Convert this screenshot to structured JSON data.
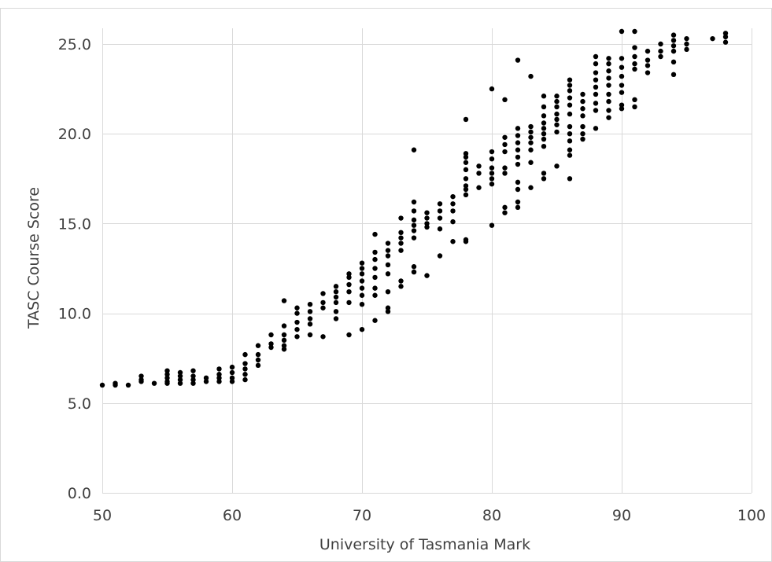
{
  "chart_data": {
    "type": "scatter",
    "title": "",
    "xlabel": "University of Tasmania Mark",
    "ylabel": "TASC Course Score",
    "xlim": [
      50,
      100
    ],
    "ylim": [
      0,
      25
    ],
    "x_ticks": [
      50,
      60,
      70,
      80,
      90,
      100
    ],
    "x_tick_labels": [
      "50",
      "60",
      "70",
      "80",
      "90",
      "100"
    ],
    "y_ticks": [
      0,
      5,
      10,
      15,
      20,
      25
    ],
    "y_tick_labels": [
      "0.0",
      "5.0",
      "10.0",
      "15.0",
      "20.0",
      "25.0"
    ],
    "grid": true,
    "legend": "none",
    "marker_color": "#000000",
    "series": [
      {
        "points": [
          [
            50,
            6.0
          ],
          [
            51,
            6.0
          ],
          [
            51,
            6.1
          ],
          [
            52,
            6.0
          ],
          [
            53,
            6.2
          ],
          [
            53,
            6.3
          ],
          [
            53,
            6.5
          ],
          [
            54,
            6.1
          ],
          [
            55,
            6.1
          ],
          [
            55,
            6.2
          ],
          [
            55,
            6.4
          ],
          [
            55,
            6.6
          ],
          [
            55,
            6.8
          ],
          [
            56,
            6.1
          ],
          [
            56,
            6.3
          ],
          [
            56,
            6.5
          ],
          [
            56,
            6.7
          ],
          [
            57,
            6.1
          ],
          [
            57,
            6.3
          ],
          [
            57,
            6.5
          ],
          [
            57,
            6.8
          ],
          [
            58,
            6.2
          ],
          [
            58,
            6.4
          ],
          [
            59,
            6.2
          ],
          [
            59,
            6.4
          ],
          [
            59,
            6.6
          ],
          [
            59,
            6.9
          ],
          [
            60,
            6.2
          ],
          [
            60,
            6.4
          ],
          [
            60,
            6.7
          ],
          [
            60,
            7.0
          ],
          [
            61,
            6.3
          ],
          [
            61,
            6.6
          ],
          [
            61,
            6.9
          ],
          [
            61,
            7.2
          ],
          [
            61,
            7.7
          ],
          [
            62,
            7.1
          ],
          [
            62,
            7.4
          ],
          [
            62,
            7.7
          ],
          [
            62,
            8.2
          ],
          [
            63,
            8.1
          ],
          [
            63,
            8.3
          ],
          [
            63,
            8.8
          ],
          [
            64,
            8.0
          ],
          [
            64,
            8.2
          ],
          [
            64,
            8.5
          ],
          [
            64,
            8.8
          ],
          [
            64,
            9.3
          ],
          [
            64,
            10.7
          ],
          [
            65,
            8.7
          ],
          [
            65,
            9.1
          ],
          [
            65,
            9.5
          ],
          [
            65,
            10.0
          ],
          [
            65,
            10.3
          ],
          [
            66,
            8.8
          ],
          [
            66,
            9.4
          ],
          [
            66,
            9.7
          ],
          [
            66,
            10.1
          ],
          [
            66,
            10.5
          ],
          [
            67,
            8.7
          ],
          [
            67,
            10.3
          ],
          [
            67,
            10.6
          ],
          [
            67,
            11.1
          ],
          [
            68,
            9.7
          ],
          [
            68,
            10.1
          ],
          [
            68,
            10.6
          ],
          [
            68,
            10.9
          ],
          [
            68,
            11.2
          ],
          [
            68,
            11.5
          ],
          [
            69,
            8.8
          ],
          [
            69,
            10.6
          ],
          [
            69,
            11.2
          ],
          [
            69,
            11.6
          ],
          [
            69,
            12.0
          ],
          [
            69,
            12.2
          ],
          [
            70,
            9.1
          ],
          [
            70,
            10.5
          ],
          [
            70,
            11.0
          ],
          [
            70,
            11.4
          ],
          [
            70,
            11.8
          ],
          [
            70,
            12.2
          ],
          [
            70,
            12.5
          ],
          [
            70,
            12.8
          ],
          [
            71,
            9.6
          ],
          [
            71,
            11.0
          ],
          [
            71,
            11.4
          ],
          [
            71,
            12.0
          ],
          [
            71,
            12.5
          ],
          [
            71,
            13.0
          ],
          [
            71,
            13.4
          ],
          [
            71,
            14.4
          ],
          [
            72,
            10.1
          ],
          [
            72,
            10.3
          ],
          [
            72,
            11.2
          ],
          [
            72,
            12.2
          ],
          [
            72,
            12.7
          ],
          [
            72,
            13.2
          ],
          [
            72,
            13.5
          ],
          [
            72,
            13.9
          ],
          [
            73,
            11.5
          ],
          [
            73,
            11.8
          ],
          [
            73,
            13.5
          ],
          [
            73,
            13.9
          ],
          [
            73,
            14.2
          ],
          [
            73,
            14.5
          ],
          [
            73,
            15.3
          ],
          [
            74,
            12.3
          ],
          [
            74,
            12.6
          ],
          [
            74,
            14.2
          ],
          [
            74,
            14.6
          ],
          [
            74,
            14.9
          ],
          [
            74,
            15.2
          ],
          [
            74,
            15.7
          ],
          [
            74,
            16.2
          ],
          [
            74,
            19.1
          ],
          [
            75,
            12.1
          ],
          [
            75,
            14.8
          ],
          [
            75,
            15.0
          ],
          [
            75,
            15.3
          ],
          [
            75,
            15.6
          ],
          [
            76,
            13.2
          ],
          [
            76,
            14.7
          ],
          [
            76,
            15.3
          ],
          [
            76,
            15.7
          ],
          [
            76,
            16.1
          ],
          [
            77,
            14.0
          ],
          [
            77,
            15.1
          ],
          [
            77,
            15.7
          ],
          [
            77,
            16.1
          ],
          [
            77,
            16.5
          ],
          [
            78,
            14.0
          ],
          [
            78,
            14.1
          ],
          [
            78,
            16.6
          ],
          [
            78,
            16.9
          ],
          [
            78,
            17.1
          ],
          [
            78,
            17.5
          ],
          [
            78,
            18.0
          ],
          [
            78,
            18.4
          ],
          [
            78,
            18.7
          ],
          [
            78,
            18.9
          ],
          [
            78,
            20.8
          ],
          [
            79,
            17.0
          ],
          [
            79,
            17.8
          ],
          [
            79,
            18.2
          ],
          [
            80,
            14.9
          ],
          [
            80,
            17.2
          ],
          [
            80,
            17.5
          ],
          [
            80,
            17.8
          ],
          [
            80,
            18.1
          ],
          [
            80,
            18.6
          ],
          [
            80,
            19.0
          ],
          [
            80,
            22.5
          ],
          [
            81,
            15.6
          ],
          [
            81,
            15.9
          ],
          [
            81,
            17.8
          ],
          [
            81,
            18.1
          ],
          [
            81,
            19.0
          ],
          [
            81,
            19.4
          ],
          [
            81,
            19.8
          ],
          [
            81,
            21.9
          ],
          [
            82,
            15.9
          ],
          [
            82,
            16.2
          ],
          [
            82,
            16.9
          ],
          [
            82,
            17.3
          ],
          [
            82,
            18.3
          ],
          [
            82,
            18.7
          ],
          [
            82,
            19.1
          ],
          [
            82,
            19.5
          ],
          [
            82,
            19.9
          ],
          [
            82,
            20.3
          ],
          [
            82,
            24.1
          ],
          [
            83,
            17.0
          ],
          [
            83,
            18.4
          ],
          [
            83,
            19.1
          ],
          [
            83,
            19.5
          ],
          [
            83,
            19.8
          ],
          [
            83,
            20.1
          ],
          [
            83,
            20.4
          ],
          [
            83,
            23.2
          ],
          [
            84,
            17.5
          ],
          [
            84,
            17.8
          ],
          [
            84,
            19.3
          ],
          [
            84,
            19.7
          ],
          [
            84,
            20.0
          ],
          [
            84,
            20.3
          ],
          [
            84,
            20.6
          ],
          [
            84,
            21.0
          ],
          [
            84,
            21.5
          ],
          [
            84,
            22.1
          ],
          [
            85,
            18.2
          ],
          [
            85,
            20.1
          ],
          [
            85,
            20.5
          ],
          [
            85,
            20.8
          ],
          [
            85,
            21.1
          ],
          [
            85,
            21.5
          ],
          [
            85,
            21.8
          ],
          [
            85,
            22.1
          ],
          [
            86,
            17.5
          ],
          [
            86,
            18.8
          ],
          [
            86,
            19.1
          ],
          [
            86,
            19.6
          ],
          [
            86,
            20.0
          ],
          [
            86,
            20.4
          ],
          [
            86,
            21.1
          ],
          [
            86,
            21.6
          ],
          [
            86,
            22.0
          ],
          [
            86,
            22.4
          ],
          [
            86,
            22.7
          ],
          [
            86,
            23.0
          ],
          [
            87,
            19.7
          ],
          [
            87,
            20.0
          ],
          [
            87,
            20.4
          ],
          [
            87,
            21.0
          ],
          [
            87,
            21.4
          ],
          [
            87,
            21.8
          ],
          [
            87,
            22.2
          ],
          [
            88,
            20.3
          ],
          [
            88,
            21.3
          ],
          [
            88,
            21.7
          ],
          [
            88,
            22.2
          ],
          [
            88,
            22.6
          ],
          [
            88,
            23.0
          ],
          [
            88,
            23.4
          ],
          [
            88,
            23.9
          ],
          [
            88,
            24.3
          ],
          [
            89,
            20.9
          ],
          [
            89,
            21.3
          ],
          [
            89,
            21.8
          ],
          [
            89,
            22.2
          ],
          [
            89,
            22.7
          ],
          [
            89,
            23.1
          ],
          [
            89,
            23.5
          ],
          [
            89,
            23.9
          ],
          [
            89,
            24.2
          ],
          [
            90,
            21.4
          ],
          [
            90,
            21.6
          ],
          [
            90,
            22.3
          ],
          [
            90,
            22.7
          ],
          [
            90,
            23.2
          ],
          [
            90,
            23.7
          ],
          [
            90,
            24.2
          ],
          [
            90,
            25.7
          ],
          [
            91,
            21.5
          ],
          [
            91,
            21.9
          ],
          [
            91,
            23.6
          ],
          [
            91,
            23.9
          ],
          [
            91,
            24.3
          ],
          [
            91,
            24.8
          ],
          [
            91,
            25.7
          ],
          [
            92,
            23.4
          ],
          [
            92,
            23.8
          ],
          [
            92,
            24.1
          ],
          [
            92,
            24.6
          ],
          [
            93,
            24.3
          ],
          [
            93,
            24.6
          ],
          [
            93,
            25.0
          ],
          [
            94,
            23.3
          ],
          [
            94,
            24.0
          ],
          [
            94,
            24.6
          ],
          [
            94,
            24.9
          ],
          [
            94,
            25.2
          ],
          [
            94,
            25.5
          ],
          [
            95,
            24.7
          ],
          [
            95,
            25.0
          ],
          [
            95,
            25.3
          ],
          [
            97,
            25.3
          ],
          [
            98,
            25.1
          ],
          [
            98,
            25.4
          ],
          [
            98,
            25.6
          ]
        ]
      }
    ]
  }
}
